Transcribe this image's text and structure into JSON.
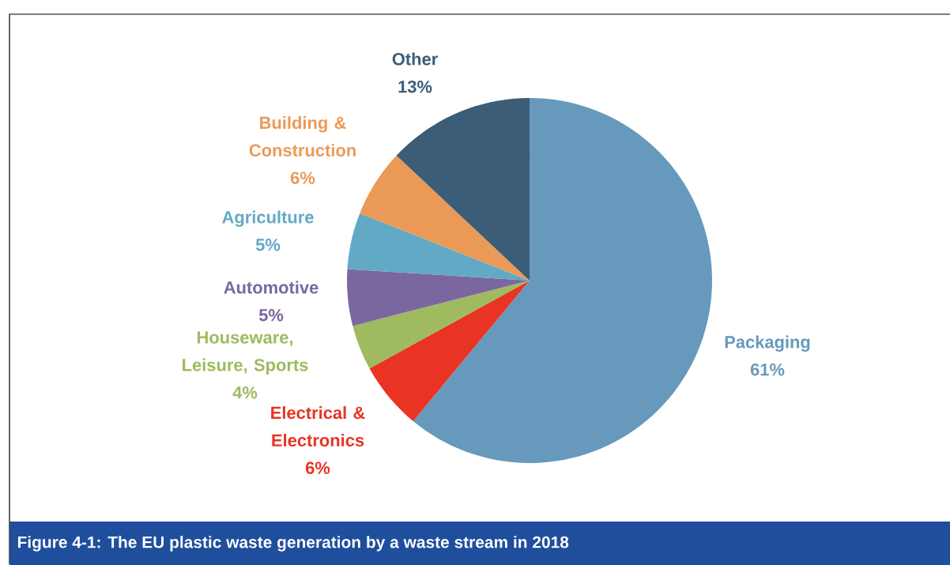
{
  "chart_data": {
    "type": "pie",
    "title": "Figure 4-1:  The EU plastic waste generation by a waste stream in 2018",
    "categories": [
      "Packaging",
      "Electrical & Electronics",
      "Houseware, Leisure, Sports",
      "Automotive",
      "Agriculture",
      "Building & Construction",
      "Other"
    ],
    "values": [
      61,
      6,
      4,
      5,
      5,
      6,
      13
    ],
    "value_labels": [
      "61%",
      "6%",
      "4%",
      "5%",
      "5%",
      "6%",
      "13%"
    ],
    "colors": [
      "#6699bb",
      "#e93323",
      "#9fba5f",
      "#7b67a0",
      "#62a9c6",
      "#ea9a56",
      "#3b5d78"
    ]
  }
}
